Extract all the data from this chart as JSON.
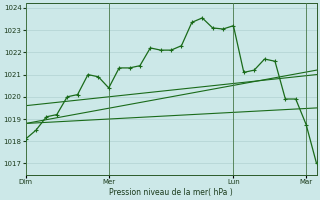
{
  "bg_color": "#cce8e8",
  "grid_color": "#aacccc",
  "line_color": "#1a6b1a",
  "marker_color": "#1a6b1a",
  "xlabel": "Pression niveau de la mer( hPa )",
  "ylim": [
    1016.5,
    1024.2
  ],
  "yticks": [
    1017,
    1018,
    1019,
    1020,
    1021,
    1022,
    1023,
    1024
  ],
  "day_labels": [
    "Dim",
    "Mer",
    "Lun",
    "Mar"
  ],
  "day_positions": [
    0,
    8,
    20,
    27
  ],
  "vline_positions": [
    0,
    8,
    20,
    27
  ],
  "line1_x": [
    0,
    1,
    2,
    3,
    4,
    5,
    6,
    7,
    8,
    9,
    10,
    11,
    12,
    13,
    14,
    15,
    16,
    17,
    18,
    19,
    20,
    21,
    22,
    23,
    24,
    25,
    26,
    27,
    28
  ],
  "line1_y": [
    1018.1,
    1018.5,
    1019.1,
    1019.2,
    1020.0,
    1020.1,
    1021.0,
    1020.9,
    1020.4,
    1021.3,
    1021.3,
    1021.4,
    1022.2,
    1022.1,
    1022.1,
    1022.3,
    1023.35,
    1023.55,
    1023.1,
    1023.05,
    1023.2,
    1021.1,
    1021.2,
    1021.7,
    1021.6,
    1019.9,
    1019.9,
    1018.75,
    1017.0
  ],
  "line2_x": [
    0,
    28
  ],
  "line2_y": [
    1018.8,
    1021.2
  ],
  "line3_x": [
    0,
    28
  ],
  "line3_y": [
    1018.8,
    1019.5
  ],
  "line4_x": [
    0,
    28
  ],
  "line4_y": [
    1019.6,
    1021.0
  ],
  "xmin": 0,
  "xmax": 28
}
